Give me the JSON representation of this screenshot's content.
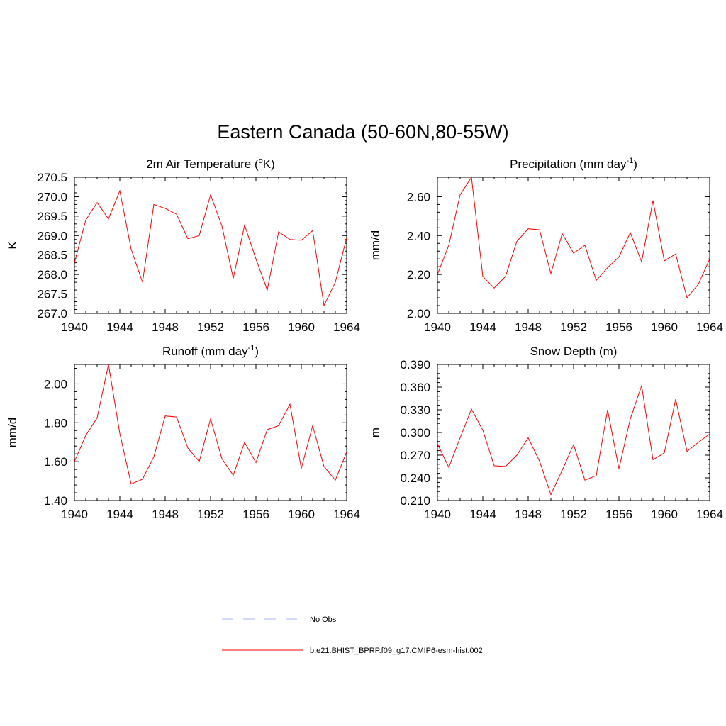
{
  "title": "Eastern Canada (50-60N,80-55W)",
  "legend": {
    "items": [
      {
        "label": "No Obs",
        "color": "#aab4ff",
        "dash": "dashed"
      },
      {
        "label": "b.e21.BHIST_BPRP.f09_g17.CMIP6-esm-hist.002",
        "color": "#ff0000",
        "dash": "solid"
      }
    ]
  },
  "chart_data": [
    {
      "type": "line",
      "title": "2m Air Temperature (",
      "title_sup": "o",
      "title_suffix": "K)",
      "ylabel": "K",
      "xlim": [
        1940,
        1964
      ],
      "ylim": [
        267.0,
        270.5
      ],
      "x_ticks": [
        "1940",
        "1944",
        "1948",
        "1952",
        "1956",
        "1960",
        "1964"
      ],
      "y_ticks": [
        "267.0",
        "267.5",
        "268.0",
        "268.5",
        "269.0",
        "269.5",
        "270.0",
        "270.5"
      ],
      "grid": false,
      "series": [
        {
          "color": "#ff0000",
          "x": [
            1940,
            1941,
            1942,
            1943,
            1944,
            1945,
            1946,
            1947,
            1948,
            1949,
            1950,
            1951,
            1952,
            1953,
            1954,
            1955,
            1956,
            1957,
            1958,
            1959,
            1960,
            1961,
            1962,
            1963,
            1964
          ],
          "values": [
            268.3,
            269.4,
            269.85,
            269.43,
            270.15,
            268.65,
            267.8,
            269.8,
            269.7,
            269.55,
            268.92,
            269.0,
            270.05,
            269.25,
            267.9,
            269.27,
            268.4,
            267.6,
            269.1,
            268.9,
            268.88,
            269.13,
            267.2,
            267.8,
            268.95
          ]
        }
      ]
    },
    {
      "type": "line",
      "title": "Precipitation (mm day",
      "title_sup": "-1",
      "title_suffix": ")",
      "ylabel": "mm/d",
      "xlim": [
        1940,
        1964
      ],
      "ylim": [
        2.0,
        2.7
      ],
      "x_ticks": [
        "1940",
        "1944",
        "1948",
        "1952",
        "1956",
        "1960",
        "1964"
      ],
      "y_ticks": [
        "2.00",
        "2.20",
        "2.40",
        "2.60"
      ],
      "grid": false,
      "series": [
        {
          "color": "#ff0000",
          "x": [
            1940,
            1941,
            1942,
            1943,
            1944,
            1945,
            1946,
            1947,
            1948,
            1949,
            1950,
            1951,
            1952,
            1953,
            1954,
            1955,
            1956,
            1957,
            1958,
            1959,
            1960,
            1961,
            1962,
            1963,
            1964
          ],
          "values": [
            2.2,
            2.35,
            2.61,
            2.7,
            2.19,
            2.13,
            2.19,
            2.37,
            2.435,
            2.43,
            2.205,
            2.41,
            2.31,
            2.35,
            2.17,
            2.235,
            2.29,
            2.415,
            2.265,
            2.58,
            2.27,
            2.305,
            2.08,
            2.15,
            2.28
          ]
        }
      ]
    },
    {
      "type": "line",
      "title": "Runoff (mm day",
      "title_sup": "-1",
      "title_suffix": ")",
      "ylabel": "mm/d",
      "xlim": [
        1940,
        1964
      ],
      "ylim": [
        1.4,
        2.1
      ],
      "x_ticks": [
        "1940",
        "1944",
        "1948",
        "1952",
        "1956",
        "1960",
        "1964"
      ],
      "y_ticks": [
        "1.40",
        "1.60",
        "1.80",
        "2.00"
      ],
      "grid": false,
      "series": [
        {
          "color": "#ff0000",
          "x": [
            1940,
            1941,
            1942,
            1943,
            1944,
            1945,
            1946,
            1947,
            1948,
            1949,
            1950,
            1951,
            1952,
            1953,
            1954,
            1955,
            1956,
            1957,
            1958,
            1959,
            1960,
            1961,
            1962,
            1963,
            1964
          ],
          "values": [
            1.6,
            1.735,
            1.825,
            2.1,
            1.745,
            1.485,
            1.51,
            1.625,
            1.835,
            1.83,
            1.67,
            1.6,
            1.82,
            1.615,
            1.53,
            1.7,
            1.595,
            1.765,
            1.785,
            1.895,
            1.565,
            1.785,
            1.575,
            1.505,
            1.65
          ]
        }
      ]
    },
    {
      "type": "line",
      "title": "Snow Depth (m)",
      "title_sup": "",
      "title_suffix": "",
      "ylabel": "m",
      "xlim": [
        1940,
        1964
      ],
      "ylim": [
        0.21,
        0.39
      ],
      "x_ticks": [
        "1940",
        "1944",
        "1948",
        "1952",
        "1956",
        "1960",
        "1964"
      ],
      "y_ticks": [
        "0.210",
        "0.240",
        "0.270",
        "0.300",
        "0.330",
        "0.360",
        "0.390"
      ],
      "grid": false,
      "series": [
        {
          "color": "#ff0000",
          "x": [
            1940,
            1941,
            1942,
            1943,
            1944,
            1945,
            1946,
            1947,
            1948,
            1949,
            1950,
            1951,
            1952,
            1953,
            1954,
            1955,
            1956,
            1957,
            1958,
            1959,
            1960,
            1961,
            1962,
            1963,
            1964
          ],
          "values": [
            0.285,
            0.254,
            0.293,
            0.331,
            0.303,
            0.256,
            0.255,
            0.27,
            0.293,
            0.262,
            0.218,
            0.25,
            0.284,
            0.237,
            0.243,
            0.33,
            0.252,
            0.318,
            0.362,
            0.264,
            0.273,
            0.344,
            0.275,
            0.287,
            0.298
          ]
        }
      ]
    }
  ]
}
